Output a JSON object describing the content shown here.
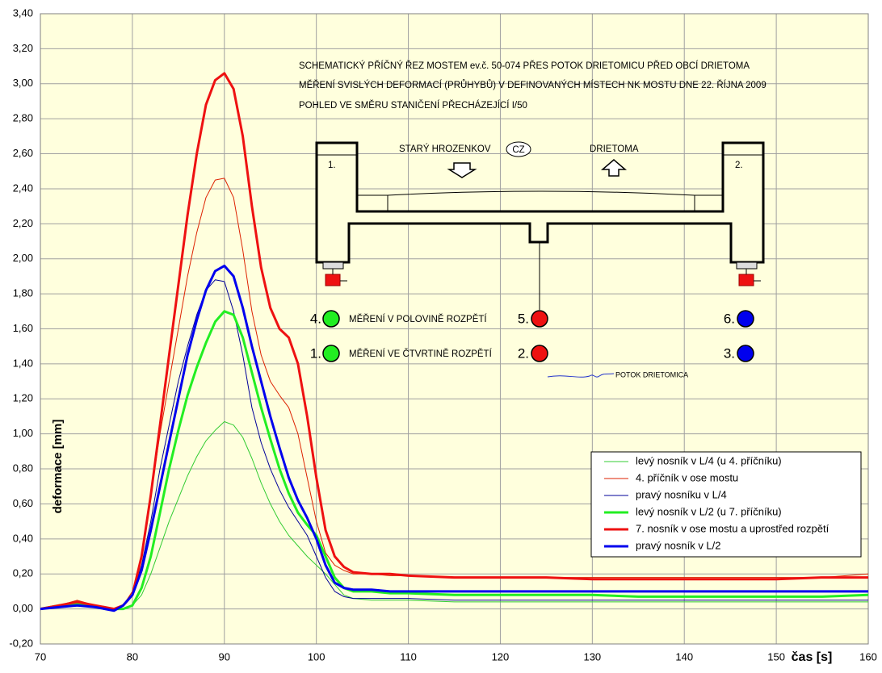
{
  "chart_data": {
    "type": "line",
    "y_label": "deformace [mm]",
    "x_label": "čas [s]",
    "xlim": [
      70,
      160
    ],
    "xticks": [
      70,
      80,
      90,
      100,
      110,
      120,
      130,
      140,
      150,
      160
    ],
    "ylim": [
      -0.2,
      3.4
    ],
    "yticks": [
      {
        "value": -0.2,
        "label": "-0,20"
      },
      {
        "value": 0,
        "label": "0,00"
      },
      {
        "value": 0.2,
        "label": "0,20"
      },
      {
        "value": 0.4,
        "label": "0,40"
      },
      {
        "value": 0.6,
        "label": "0,60"
      },
      {
        "value": 0.8,
        "label": "0,80"
      },
      {
        "value": 1.0,
        "label": "1,00"
      },
      {
        "value": 1.2,
        "label": "1,20"
      },
      {
        "value": 1.4,
        "label": "1,40"
      },
      {
        "value": 1.6,
        "label": "1,60"
      },
      {
        "value": 1.8,
        "label": "1,80"
      },
      {
        "value": 2.0,
        "label": "2,00"
      },
      {
        "value": 2.2,
        "label": "2,20"
      },
      {
        "value": 2.4,
        "label": "2,40"
      },
      {
        "value": 2.6,
        "label": "2,60"
      },
      {
        "value": 2.8,
        "label": "2,80"
      },
      {
        "value": 3.0,
        "label": "3,00"
      },
      {
        "value": 3.2,
        "label": "3,20"
      },
      {
        "value": 3.4,
        "label": "3,40"
      }
    ],
    "grid": true,
    "legend": "lower-right",
    "x": [
      70,
      72,
      74,
      76,
      78,
      79,
      80,
      81,
      82,
      83,
      84,
      85,
      86,
      87,
      88,
      89,
      90,
      91,
      92,
      93,
      94,
      95,
      96,
      97,
      98,
      99,
      100,
      101,
      102,
      103,
      104,
      106,
      108,
      110,
      115,
      120,
      125,
      130,
      135,
      140,
      145,
      150,
      155,
      160
    ],
    "series": [
      {
        "name": "levý nosník v L/4 (u 4. příčníku)",
        "color": "#33cc33",
        "linewidth": 1,
        "values": [
          0,
          0.02,
          0.04,
          0.02,
          0,
          0,
          0.02,
          0.08,
          0.2,
          0.35,
          0.5,
          0.63,
          0.76,
          0.87,
          0.96,
          1.02,
          1.07,
          1.05,
          0.98,
          0.86,
          0.72,
          0.6,
          0.5,
          0.42,
          0.36,
          0.3,
          0.25,
          0.2,
          0.14,
          0.08,
          0.06,
          0.05,
          0.05,
          0.05,
          0.04,
          0.04,
          0.04,
          0.04,
          0.04,
          0.04,
          0.04,
          0.04,
          0.04,
          0.04
        ]
      },
      {
        "name": "4. příčník v ose mostu",
        "color": "#dd2200",
        "linewidth": 1,
        "values": [
          0,
          0.02,
          0.05,
          0.02,
          0,
          0.02,
          0.1,
          0.3,
          0.65,
          1.0,
          1.3,
          1.6,
          1.9,
          2.15,
          2.35,
          2.45,
          2.46,
          2.35,
          2.05,
          1.7,
          1.45,
          1.3,
          1.22,
          1.15,
          1.0,
          0.75,
          0.5,
          0.32,
          0.25,
          0.22,
          0.2,
          0.2,
          0.19,
          0.19,
          0.18,
          0.18,
          0.18,
          0.18,
          0.18,
          0.18,
          0.18,
          0.18,
          0.18,
          0.2
        ]
      },
      {
        "name": "pravý nosníku v L/4",
        "color": "#000099",
        "linewidth": 1,
        "values": [
          0,
          0.01,
          0.03,
          0.01,
          -0.01,
          0.02,
          0.08,
          0.25,
          0.5,
          0.8,
          1.05,
          1.3,
          1.5,
          1.68,
          1.82,
          1.88,
          1.87,
          1.7,
          1.45,
          1.15,
          0.95,
          0.8,
          0.68,
          0.58,
          0.5,
          0.42,
          0.3,
          0.18,
          0.1,
          0.07,
          0.06,
          0.06,
          0.06,
          0.06,
          0.05,
          0.05,
          0.05,
          0.05,
          0.05,
          0.05,
          0.05,
          0.05,
          0.05,
          0.05
        ]
      },
      {
        "name": "levý nosník v L/2  (u 7. příčníku)",
        "color": "#22ee22",
        "linewidth": 3,
        "values": [
          0,
          0.02,
          0.03,
          0.01,
          0,
          0,
          0.02,
          0.12,
          0.3,
          0.55,
          0.8,
          1.02,
          1.22,
          1.38,
          1.52,
          1.64,
          1.7,
          1.68,
          1.55,
          1.35,
          1.15,
          0.97,
          0.8,
          0.66,
          0.55,
          0.48,
          0.42,
          0.3,
          0.18,
          0.12,
          0.1,
          0.1,
          0.09,
          0.09,
          0.08,
          0.08,
          0.08,
          0.08,
          0.07,
          0.07,
          0.07,
          0.07,
          0.07,
          0.08
        ]
      },
      {
        "name": "7. nosník v ose mostu a uprostřed rozpětí",
        "color": "#ee1111",
        "linewidth": 3,
        "values": [
          0,
          0.02,
          0.04,
          0.02,
          0,
          0.02,
          0.08,
          0.3,
          0.65,
          1.05,
          1.45,
          1.85,
          2.25,
          2.6,
          2.88,
          3.02,
          3.06,
          2.97,
          2.7,
          2.3,
          1.95,
          1.72,
          1.6,
          1.55,
          1.4,
          1.1,
          0.75,
          0.45,
          0.3,
          0.24,
          0.21,
          0.2,
          0.2,
          0.19,
          0.18,
          0.18,
          0.18,
          0.17,
          0.17,
          0.17,
          0.17,
          0.17,
          0.18,
          0.18
        ]
      },
      {
        "name": "pravý nosník v L/2",
        "color": "#0000ee",
        "linewidth": 3,
        "values": [
          0,
          0.01,
          0.02,
          0.01,
          -0.01,
          0.02,
          0.08,
          0.22,
          0.45,
          0.7,
          0.95,
          1.2,
          1.45,
          1.65,
          1.82,
          1.93,
          1.96,
          1.9,
          1.72,
          1.5,
          1.3,
          1.1,
          0.92,
          0.75,
          0.62,
          0.52,
          0.4,
          0.25,
          0.15,
          0.12,
          0.11,
          0.11,
          0.1,
          0.1,
          0.1,
          0.1,
          0.1,
          0.1,
          0.1,
          0.1,
          0.1,
          0.1,
          0.1,
          0.1
        ]
      }
    ],
    "annotations": [
      "SCHEMATICKÝ PŘÍČNÝ ŘEZ MOSTEM ev.č. 50-074 PŘES POTOK DRIETOMICU PŘED OBCÍ DRIETOMA",
      "MĚŘENÍ SVISLÝCH DEFORMACÍ (PRŮHYBŮ) V DEFINOVANÝCH MÍSTECH NK MOSTU DNE 22. ŘÍJNA 2009",
      "POHLED VE SMĚRU STANIČENÍ PŘECHÁZEJÍCÍ I/50",
      "STARÝ HROZENKOV",
      "CZ",
      "DRIETOMA",
      "1.",
      "2.",
      "4.",
      "MĚŘENÍ V POLOVINĚ ROZPĚTÍ",
      "5.",
      "6.",
      "1.",
      "MĚŘENÍ VE ČTVRTINĚ ROZPĚTÍ",
      "2.",
      "3.",
      "POTOK DRIETOMICA"
    ]
  }
}
